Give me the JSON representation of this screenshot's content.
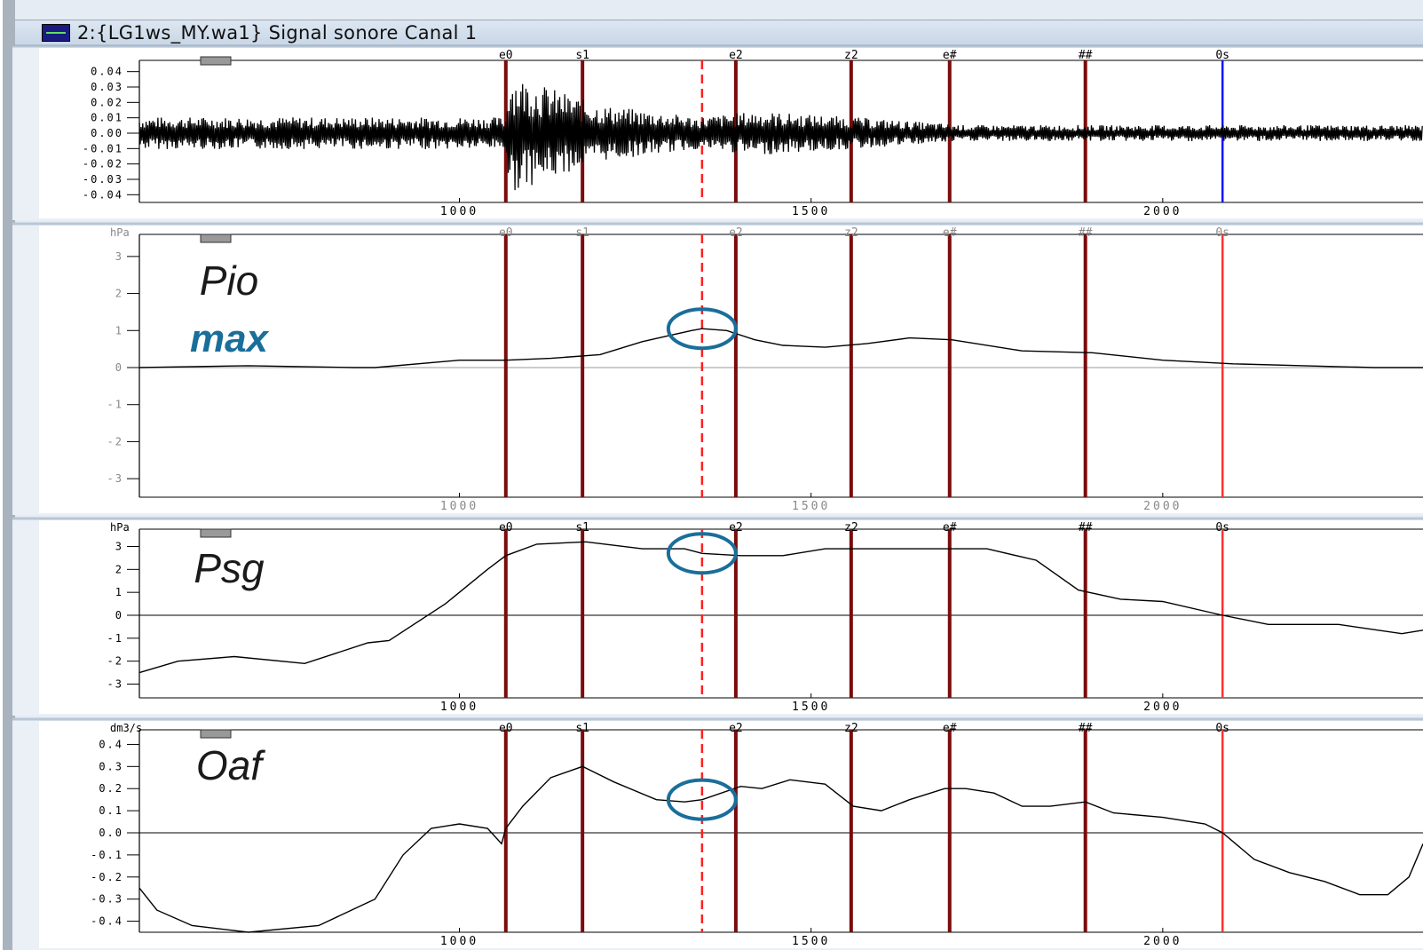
{
  "window": {
    "title": "2:{LG1ws_MY.wa1} Signal sonore Canal 1"
  },
  "colors": {
    "marker": "#7a0c0c",
    "cursor_dashed": "#ff2020",
    "cursor_blue": "#1010ff",
    "cursor_red": "#ff3030",
    "annotation": "#1a6e9a",
    "signal": "#000000"
  },
  "markers": [
    {
      "label": "e0",
      "x": 1066
    },
    {
      "label": "s1",
      "x": 1175
    },
    {
      "label": "e2",
      "x": 1393
    },
    {
      "label": "z2",
      "x": 1557
    },
    {
      "label": "e#",
      "x": 1697
    },
    {
      "label": "##",
      "x": 1890
    },
    {
      "label": "0s",
      "x": 2085
    }
  ],
  "cursor_time": 1345,
  "panels": [
    {
      "id": "audio",
      "unit": "",
      "yticks": [
        "0.04",
        "0.03",
        "0.02",
        "0.01",
        "0.00",
        "-0.01",
        "-0.02",
        "-0.03",
        "-0.04"
      ],
      "xticks": [
        "1000",
        "1500",
        "2000"
      ],
      "series_label": "",
      "annotation_label": ""
    },
    {
      "id": "pio",
      "unit": "hPa",
      "yticks": [
        "3",
        "2",
        "1",
        "0",
        "-1",
        "-2",
        "-3"
      ],
      "xticks": [
        "1000",
        "1500",
        "2000"
      ],
      "series_label": "Pio",
      "annotation_label": "max"
    },
    {
      "id": "psg",
      "unit": "hPa",
      "yticks": [
        "3",
        "2",
        "1",
        "0",
        "-1",
        "-2",
        "-3"
      ],
      "xticks": [
        "1000",
        "1500",
        "2000"
      ],
      "series_label": "Psg",
      "annotation_label": ""
    },
    {
      "id": "oaf",
      "unit": "dm3/s",
      "yticks": [
        "0.4",
        "0.3",
        "0.2",
        "0.1",
        "0.0",
        "-0.1",
        "-0.2",
        "-0.3",
        "-0.4"
      ],
      "xticks": [
        "1000",
        "1500",
        "2000"
      ],
      "series_label": "Oaf",
      "annotation_label": ""
    }
  ],
  "chart_data": [
    {
      "type": "line",
      "xlabel": "",
      "ylabel": "",
      "xlim": [
        545,
        2370
      ],
      "ylim": [
        -0.045,
        0.045
      ],
      "x": [
        545,
        1066,
        1070,
        1200,
        1340,
        1420,
        1560,
        1720,
        2370
      ],
      "series": [
        {
          "values": [
            0.008,
            0.008,
            0.03,
            0.014,
            0.008,
            0.011,
            0.008,
            0.004,
            0.004
          ]
        }
      ]
    },
    {
      "type": "line",
      "xlabel": "",
      "ylabel": "",
      "xlim": [
        545,
        2370
      ],
      "ylim": [
        -3.5,
        3.5
      ],
      "x": [
        545,
        700,
        850,
        880,
        1000,
        1066,
        1130,
        1200,
        1260,
        1330,
        1345,
        1380,
        1420,
        1460,
        1520,
        1580,
        1640,
        1700,
        1800,
        1900,
        2000,
        2100,
        2200,
        2300,
        2370
      ],
      "series": [
        {
          "values": [
            0.0,
            0.05,
            0.0,
            0.0,
            0.2,
            0.2,
            0.25,
            0.35,
            0.7,
            1.0,
            1.05,
            1.0,
            0.75,
            0.6,
            0.55,
            0.65,
            0.8,
            0.75,
            0.45,
            0.4,
            0.2,
            0.1,
            0.05,
            0.0,
            0.0
          ]
        }
      ]
    },
    {
      "type": "line",
      "xlabel": "",
      "ylabel": "",
      "xlim": [
        545,
        2370
      ],
      "ylim": [
        -3.6,
        3.6
      ],
      "x": [
        545,
        600,
        680,
        780,
        870,
        900,
        980,
        1040,
        1066,
        1110,
        1180,
        1260,
        1320,
        1345,
        1400,
        1460,
        1520,
        1600,
        1700,
        1750,
        1820,
        1880,
        1940,
        2000,
        2085,
        2150,
        2250,
        2340,
        2370
      ],
      "series": [
        {
          "values": [
            -2.5,
            -2.0,
            -1.8,
            -2.1,
            -1.2,
            -1.1,
            0.5,
            2.0,
            2.6,
            3.1,
            3.2,
            2.9,
            2.9,
            2.7,
            2.6,
            2.6,
            2.9,
            2.9,
            2.9,
            2.9,
            2.4,
            1.1,
            0.7,
            0.6,
            0.0,
            -0.4,
            -0.4,
            -0.8,
            -0.65
          ]
        }
      ]
    },
    {
      "type": "line",
      "xlabel": "",
      "ylabel": "",
      "xlim": [
        545,
        2370
      ],
      "ylim": [
        -0.45,
        0.45
      ],
      "x": [
        545,
        570,
        620,
        700,
        800,
        880,
        920,
        960,
        1000,
        1040,
        1060,
        1066,
        1090,
        1130,
        1175,
        1220,
        1280,
        1320,
        1345,
        1400,
        1430,
        1470,
        1520,
        1560,
        1600,
        1640,
        1690,
        1720,
        1760,
        1800,
        1840,
        1890,
        1930,
        2000,
        2060,
        2085,
        2130,
        2180,
        2230,
        2280,
        2320,
        2350,
        2370
      ],
      "series": [
        {
          "values": [
            -0.25,
            -0.35,
            -0.42,
            -0.45,
            -0.42,
            -0.3,
            -0.1,
            0.02,
            0.04,
            0.02,
            -0.05,
            0.02,
            0.12,
            0.25,
            0.3,
            0.23,
            0.15,
            0.14,
            0.15,
            0.21,
            0.2,
            0.24,
            0.22,
            0.12,
            0.1,
            0.15,
            0.2,
            0.2,
            0.18,
            0.12,
            0.12,
            0.14,
            0.09,
            0.07,
            0.04,
            0.0,
            -0.12,
            -0.18,
            -0.22,
            -0.28,
            -0.28,
            -0.2,
            -0.05
          ]
        }
      ]
    }
  ]
}
